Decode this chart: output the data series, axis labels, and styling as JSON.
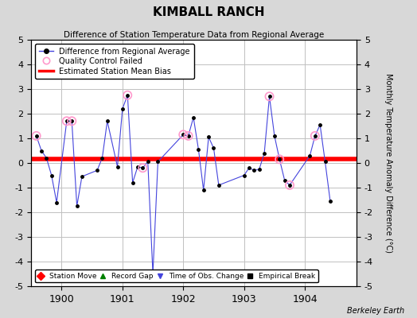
{
  "title": "KIMBALL RANCH",
  "subtitle": "Difference of Station Temperature Data from Regional Average",
  "ylabel": "Monthly Temperature Anomaly Difference (°C)",
  "credit": "Berkeley Earth",
  "ylim": [
    -5,
    5
  ],
  "xlim": [
    1899.5,
    1904.85
  ],
  "yticks": [
    -5,
    -4,
    -3,
    -2,
    -1,
    0,
    1,
    2,
    3,
    4,
    5
  ],
  "xticks": [
    1900,
    1901,
    1902,
    1903,
    1904
  ],
  "bias_line_y": 0.15,
  "data_x": [
    1899.583,
    1899.667,
    1899.75,
    1899.833,
    1899.917,
    1900.083,
    1900.167,
    1900.25,
    1900.333,
    1900.583,
    1900.667,
    1900.75,
    1900.917,
    1901.0,
    1901.083,
    1901.167,
    1901.25,
    1901.333,
    1901.417,
    1901.5,
    1901.583,
    1902.0,
    1902.083,
    1902.167,
    1902.25,
    1902.333,
    1902.417,
    1902.5,
    1902.583,
    1903.0,
    1903.083,
    1903.167,
    1903.25,
    1903.333,
    1903.417,
    1903.5,
    1903.583,
    1903.667,
    1903.75,
    1904.083,
    1904.167,
    1904.25,
    1904.333,
    1904.417
  ],
  "data_y": [
    1.1,
    0.5,
    0.2,
    -0.5,
    -1.6,
    1.7,
    1.7,
    -1.75,
    -0.55,
    -0.3,
    0.2,
    1.7,
    -0.15,
    2.2,
    2.75,
    -0.8,
    -0.15,
    -0.2,
    0.05,
    -4.5,
    0.05,
    1.15,
    1.1,
    1.85,
    0.55,
    -1.1,
    1.05,
    0.6,
    -0.9,
    -0.5,
    -0.2,
    -0.3,
    -0.25,
    0.4,
    2.7,
    1.1,
    0.15,
    -0.7,
    -0.9,
    0.3,
    1.1,
    1.55,
    0.05,
    -1.55
  ],
  "qc_failed_x": [
    1899.583,
    1900.083,
    1900.167,
    1901.083,
    1901.333,
    1902.0,
    1902.083,
    1903.417,
    1903.583,
    1903.75,
    1904.167
  ],
  "qc_failed_y": [
    1.1,
    1.7,
    1.7,
    2.75,
    -0.2,
    1.15,
    1.1,
    2.7,
    0.15,
    -0.9,
    1.1
  ],
  "line_color": "#4444dd",
  "marker_color": "#000000",
  "qc_color": "#ff99cc",
  "bias_color": "#ff0000",
  "bg_color": "#d8d8d8",
  "plot_bg_color": "#ffffff",
  "grid_color": "#c0c0c0"
}
